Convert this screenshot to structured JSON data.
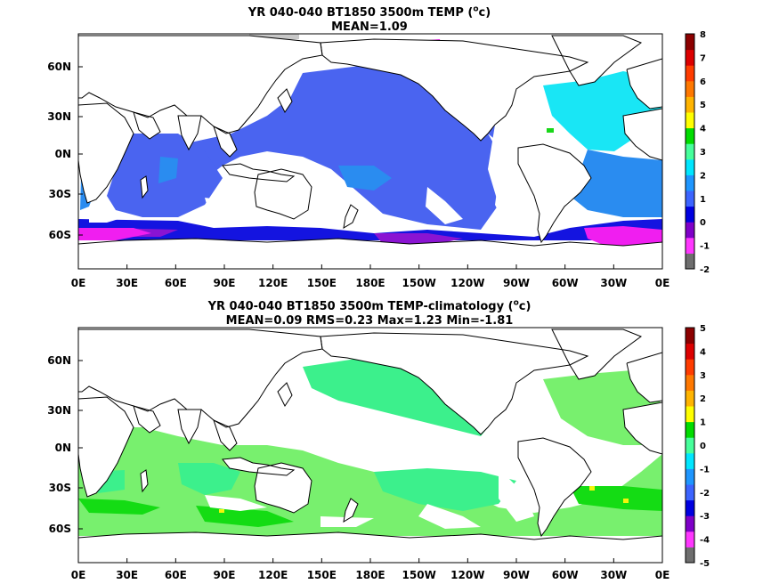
{
  "top_panel": {
    "title_line1_pre": "YR 040-040 BT1850 3500m TEMP (",
    "title_sup": "o",
    "title_line1_post": "c)",
    "title_line2": "MEAN=1.09",
    "colorbar_labels": [
      "8",
      "7",
      "6",
      "5",
      "4",
      "3",
      "2",
      "1",
      "0",
      "-1",
      "-2"
    ]
  },
  "bottom_panel": {
    "title_line1_pre": "YR 040-040 BT1850 3500m TEMP-climatology (",
    "title_sup": "o",
    "title_line1_post": "c)",
    "title_line2": "MEAN=0.09   RMS=0.23   Max=1.23   Min=-1.81",
    "colorbar_labels": [
      "5",
      "4",
      "3",
      "2",
      "1",
      "0",
      "-1",
      "-2",
      "-3",
      "-4",
      "-5"
    ]
  },
  "lon_labels": [
    "0E",
    "30E",
    "60E",
    "90E",
    "120E",
    "150E",
    "180E",
    "150W",
    "120W",
    "90W",
    "60W",
    "30W",
    "0E"
  ],
  "lat_labels": [
    "60N",
    "30N",
    "0N",
    "30S",
    "60S"
  ],
  "colorbar_colors": [
    "#6e6e6e",
    "#ff37ff",
    "#7f00c8",
    "#0000e0",
    "#3c64ff",
    "#1e96ff",
    "#00e6ff",
    "#46ff9b",
    "#00dc00",
    "#ffff00",
    "#ffb400",
    "#ff7800",
    "#ff3c00",
    "#dc0000",
    "#8c0000"
  ],
  "colors": {
    "land": "#ffffff",
    "coast": "#000000",
    "top_deep_blue": "#4a64f0",
    "top_mid_blue": "#2a8cf0",
    "top_cyan": "#19e6f5",
    "top_indigo": "#1414e0",
    "top_purple": "#8a14d2",
    "top_magenta": "#f01ef0",
    "top_green": "#19d719",
    "bottom_green1": "#3cf08c",
    "bottom_green2": "#78f06e",
    "bottom_green3": "#14dc14",
    "bottom_yellow": "#f5f50a",
    "grey": "#c8c8c8"
  }
}
